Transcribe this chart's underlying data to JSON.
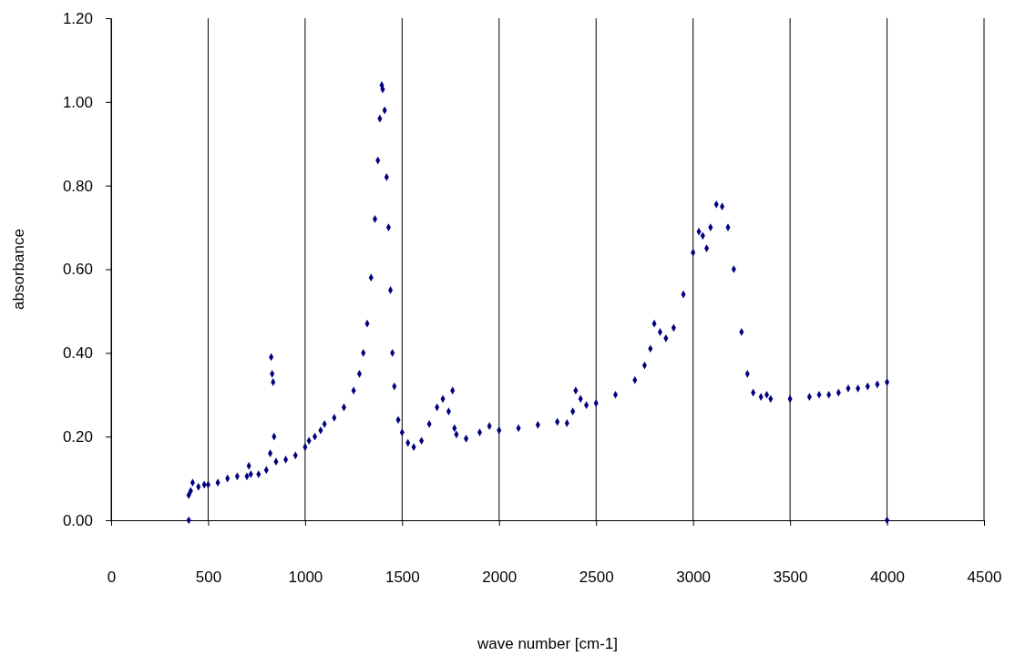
{
  "chart_data": {
    "type": "scatter",
    "xlabel": "wave number [cm-1]",
    "ylabel": "absorbance",
    "xlim": [
      0,
      4500
    ],
    "xticks": [
      0,
      500,
      1000,
      1500,
      2000,
      2500,
      3000,
      3500,
      4000,
      4500
    ],
    "ylim": [
      0,
      1.2
    ],
    "yticks": [
      {
        "value": 0,
        "label": "0.00"
      },
      {
        "value": 0.2,
        "label": "0.20"
      },
      {
        "value": 0.4,
        "label": "0.40"
      },
      {
        "value": 0.6,
        "label": "0.60"
      },
      {
        "value": 0.8,
        "label": "0.80"
      },
      {
        "value": 1,
        "label": "1.00"
      },
      {
        "value": 1.2,
        "label": "1.20"
      }
    ],
    "grid": "x",
    "marker": "diamond",
    "series": [
      {
        "color": "#000080",
        "x": [
          400,
          400,
          410,
          420,
          450,
          480,
          500,
          550,
          600,
          650,
          700,
          710,
          720,
          760,
          800,
          820,
          825,
          830,
          835,
          840,
          850,
          900,
          950,
          1000,
          1020,
          1050,
          1080,
          1100,
          1150,
          1200,
          1250,
          1280,
          1300,
          1320,
          1340,
          1360,
          1375,
          1385,
          1395,
          1400,
          1410,
          1420,
          1430,
          1440,
          1450,
          1460,
          1480,
          1500,
          1530,
          1560,
          1600,
          1640,
          1680,
          1710,
          1740,
          1760,
          1770,
          1780,
          1830,
          1900,
          1950,
          2000,
          2100,
          2200,
          2300,
          2350,
          2380,
          2395,
          2420,
          2450,
          2500,
          2600,
          2700,
          2750,
          2780,
          2800,
          2830,
          2860,
          2900,
          2950,
          3000,
          3030,
          3050,
          3070,
          3090,
          3120,
          3150,
          3180,
          3210,
          3250,
          3280,
          3310,
          3350,
          3380,
          3400,
          3500,
          3600,
          3650,
          3700,
          3750,
          3800,
          3850,
          3900,
          3950,
          4000,
          4000
        ],
        "values": [
          0,
          0.06,
          0.07,
          0.09,
          0.08,
          0.085,
          0.085,
          0.09,
          0.1,
          0.105,
          0.105,
          0.13,
          0.11,
          0.11,
          0.12,
          0.16,
          0.39,
          0.35,
          0.33,
          0.2,
          0.14,
          0.145,
          0.155,
          0.175,
          0.19,
          0.2,
          0.215,
          0.23,
          0.245,
          0.27,
          0.31,
          0.35,
          0.4,
          0.47,
          0.58,
          0.72,
          0.86,
          0.96,
          1.04,
          1.03,
          0.98,
          0.82,
          0.7,
          0.55,
          0.4,
          0.32,
          0.24,
          0.21,
          0.185,
          0.175,
          0.19,
          0.23,
          0.27,
          0.29,
          0.26,
          0.31,
          0.22,
          0.205,
          0.195,
          0.21,
          0.225,
          0.215,
          0.22,
          0.228,
          0.235,
          0.232,
          0.26,
          0.31,
          0.29,
          0.275,
          0.28,
          0.3,
          0.335,
          0.37,
          0.41,
          0.47,
          0.45,
          0.435,
          0.46,
          0.54,
          0.64,
          0.69,
          0.68,
          0.65,
          0.7,
          0.755,
          0.75,
          0.7,
          0.6,
          0.45,
          0.35,
          0.305,
          0.295,
          0.3,
          0.29,
          0.29,
          0.295,
          0.3,
          0.3,
          0.305,
          0.315,
          0.315,
          0.32,
          0.325,
          0.33,
          0
        ]
      }
    ]
  }
}
